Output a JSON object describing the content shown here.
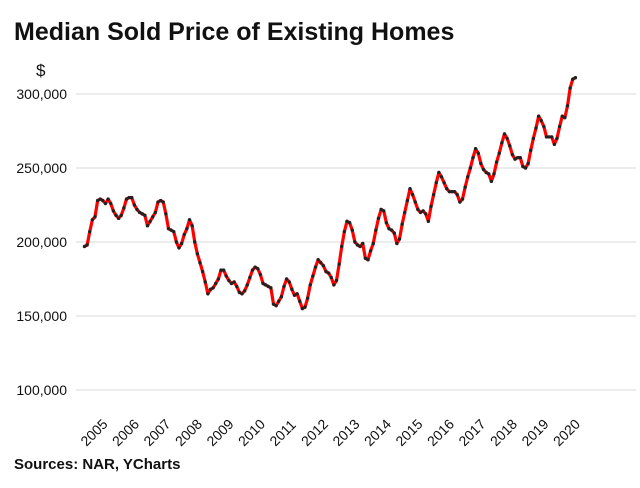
{
  "title": "Median Sold Price of Existing Homes",
  "source": "Sources: NAR, YCharts",
  "colors": {
    "line": "#ff0000",
    "marker": "#222222",
    "grid": "#d9d9d9",
    "text": "#111111"
  },
  "chart_data": {
    "type": "line",
    "title": "Median Sold Price of Existing Homes",
    "ylabel": "$",
    "xlabel": "",
    "ylim": [
      100000,
      310000
    ],
    "yticks": [
      100000,
      150000,
      200000,
      250000,
      300000
    ],
    "ytick_labels": [
      "100,000",
      "150,000",
      "200,000",
      "250,000",
      "300,000"
    ],
    "xtick_labels": [
      "2005",
      "2006",
      "2007",
      "2008",
      "2009",
      "2010",
      "2011",
      "2012",
      "2013",
      "2014",
      "2015",
      "2016",
      "2017",
      "2018",
      "2019",
      "2020"
    ],
    "grid": true,
    "legend": "none",
    "frequency": "monthly",
    "start": "2005-01",
    "series": [
      {
        "values": [
          197000,
          198000,
          207000,
          215000,
          217000,
          228000,
          229000,
          228000,
          226000,
          229000,
          226000,
          221000,
          218000,
          216000,
          218000,
          223000,
          229000,
          230000,
          230000,
          225000,
          222000,
          220000,
          219000,
          218000,
          211000,
          214000,
          217000,
          220000,
          227000,
          228000,
          227000,
          219000,
          209000,
          208000,
          207000,
          200000,
          196000,
          199000,
          205000,
          209000,
          215000,
          211000,
          200000,
          192000,
          186000,
          180000,
          173000,
          165000,
          168000,
          169000,
          172000,
          175000,
          181000,
          181000,
          177000,
          174000,
          172000,
          173000,
          170000,
          166000,
          165000,
          167000,
          171000,
          176000,
          181000,
          183000,
          182000,
          178000,
          172000,
          171000,
          170000,
          169000,
          158000,
          157000,
          160000,
          163000,
          170000,
          175000,
          173000,
          168000,
          164000,
          165000,
          160000,
          155000,
          156000,
          162000,
          171000,
          177000,
          183000,
          188000,
          186000,
          184000,
          180000,
          179000,
          176000,
          171000,
          174000,
          185000,
          197000,
          207000,
          214000,
          213000,
          208000,
          200000,
          198000,
          197000,
          199000,
          189000,
          188000,
          194000,
          199000,
          208000,
          216000,
          222000,
          221000,
          213000,
          209000,
          208000,
          206000,
          199000,
          202000,
          212000,
          220000,
          228000,
          236000,
          232000,
          227000,
          222000,
          220000,
          221000,
          219000,
          214000,
          224000,
          232000,
          240000,
          247000,
          244000,
          240000,
          236000,
          234000,
          234000,
          234000,
          232000,
          227000,
          229000,
          237000,
          244000,
          250000,
          257000,
          263000,
          260000,
          253000,
          249000,
          247000,
          246000,
          241000,
          246000,
          254000,
          260000,
          267000,
          273000,
          270000,
          265000,
          259000,
          256000,
          257000,
          257000,
          251000,
          250000,
          253000,
          262000,
          270000,
          277000,
          285000,
          282000,
          278000,
          271000,
          271000,
          271000,
          266000,
          270000,
          278000,
          285000,
          284000,
          292000,
          304000,
          310000,
          311000
        ]
      }
    ]
  }
}
